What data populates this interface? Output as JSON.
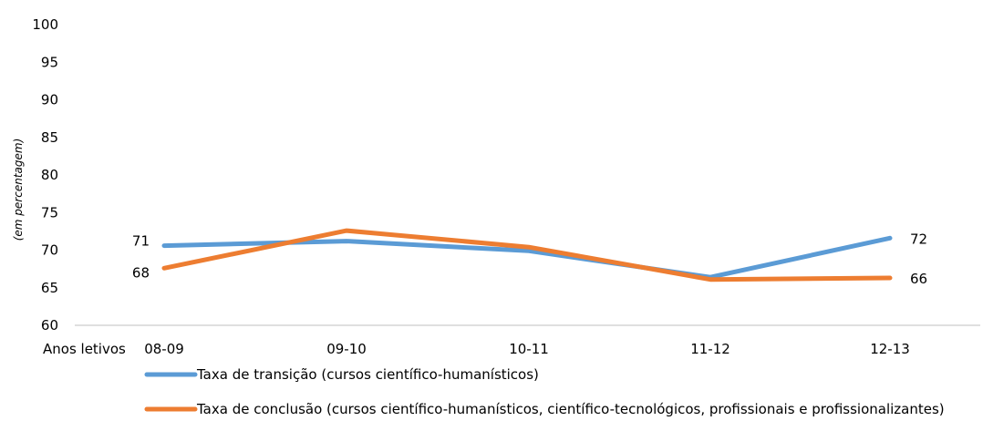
{
  "chart_data": {
    "type": "line",
    "title": "",
    "ylabel": "(em percentagem)",
    "xlabel": "Anos letivos",
    "categories": [
      "08-09",
      "09-10",
      "10-11",
      "11-12",
      "12-13"
    ],
    "ylim": [
      60,
      100
    ],
    "yticks": [
      60,
      65,
      70,
      75,
      80,
      85,
      90,
      95,
      100
    ],
    "grid": false,
    "legend": "bottom",
    "series": [
      {
        "name": "Taxa de transição (cursos científico-humanísticos)",
        "color": "#5B9BD5",
        "values": [
          70.6,
          71.2,
          69.9,
          66.4,
          71.6
        ],
        "labels": {
          "0": "71",
          "4": "72"
        }
      },
      {
        "name": "Taxa de conclusão (cursos científico-humanísticos, científico-tecnológicos, profissionais e profissionalizantes)",
        "color": "#ED7D31",
        "values": [
          67.6,
          72.6,
          70.4,
          66.1,
          66.3
        ],
        "labels": {
          "0": "68",
          "4": "66"
        }
      }
    ]
  }
}
